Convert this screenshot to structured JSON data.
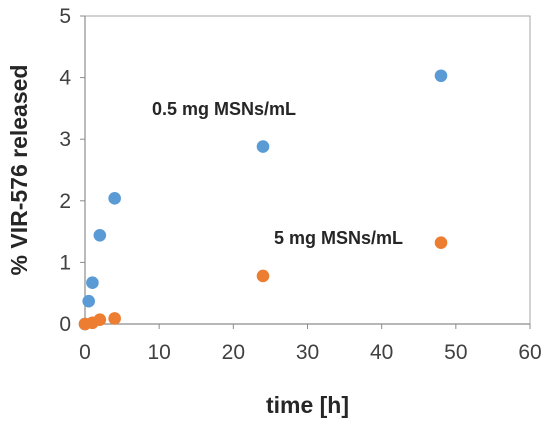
{
  "chart_data": {
    "type": "scatter",
    "xlabel": "time [h]",
    "ylabel": "% VIR-576 released",
    "xlim": [
      0,
      60
    ],
    "ylim": [
      0,
      5
    ],
    "x_ticks": [
      0,
      10,
      20,
      30,
      40,
      50,
      60
    ],
    "y_ticks": [
      0,
      1,
      2,
      3,
      4,
      5
    ],
    "grid": false,
    "legend": "none",
    "series": [
      {
        "name": "0.5 mg MSNs/mL",
        "color": "#5B9BD5",
        "points": [
          {
            "x": 0,
            "y": 0.0
          },
          {
            "x": 0.5,
            "y": 0.37
          },
          {
            "x": 1,
            "y": 0.67
          },
          {
            "x": 2,
            "y": 1.44
          },
          {
            "x": 4,
            "y": 2.04
          },
          {
            "x": 24,
            "y": 2.88
          },
          {
            "x": 48,
            "y": 4.03
          }
        ]
      },
      {
        "name": "5 mg MSNs/mL",
        "color": "#ED7D31",
        "points": [
          {
            "x": 0,
            "y": 0.0
          },
          {
            "x": 1,
            "y": 0.02
          },
          {
            "x": 2,
            "y": 0.07
          },
          {
            "x": 4,
            "y": 0.09
          },
          {
            "x": 24,
            "y": 0.78
          },
          {
            "x": 48,
            "y": 1.32
          }
        ]
      }
    ],
    "annotations": [
      "0.5 mg MSNs/mL",
      "5 mg MSNs/mL"
    ]
  }
}
